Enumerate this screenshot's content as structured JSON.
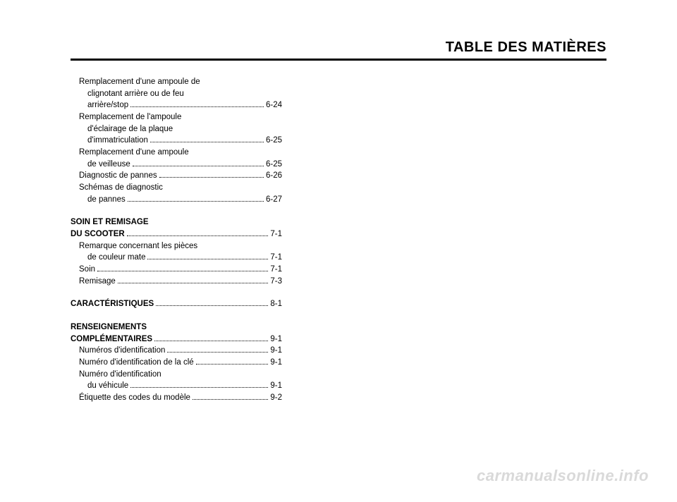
{
  "header": {
    "title": "TABLE DES MATIÈRES"
  },
  "watermark": "carmanualsonline.info",
  "toc": {
    "block1": [
      {
        "indent": 1,
        "text": "Remplacement d'une ampoule de",
        "page": null
      },
      {
        "indent": 2,
        "text": "clignotant arrière ou de feu",
        "page": null
      },
      {
        "indent": 2,
        "text": "arrière/stop",
        "page": "6-24"
      },
      {
        "indent": 1,
        "text": "Remplacement de l'ampoule",
        "page": null
      },
      {
        "indent": 2,
        "text": "d'éclairage de la plaque",
        "page": null
      },
      {
        "indent": 2,
        "text": "d'immatriculation",
        "page": "6-25"
      },
      {
        "indent": 1,
        "text": "Remplacement d'une ampoule",
        "page": null
      },
      {
        "indent": 2,
        "text": "de veilleuse",
        "page": "6-25"
      },
      {
        "indent": 1,
        "text": "Diagnostic de pannes",
        "page": "6-26"
      },
      {
        "indent": 1,
        "text": "Schémas de diagnostic",
        "page": null
      },
      {
        "indent": 2,
        "text": "de pannes",
        "page": "6-27"
      }
    ],
    "block2_head": [
      {
        "indent": 0,
        "text": "SOIN ET REMISAGE",
        "page": null
      }
    ],
    "block2": [
      {
        "indent": 0,
        "text": "DU SCOOTER",
        "page": "7-1",
        "bold": true
      },
      {
        "indent": 1,
        "text": "Remarque concernant les pièces",
        "page": null
      },
      {
        "indent": 2,
        "text": "de couleur mate",
        "page": "7-1"
      },
      {
        "indent": 1,
        "text": "Soin",
        "page": "7-1"
      },
      {
        "indent": 1,
        "text": "Remisage",
        "page": "7-3"
      }
    ],
    "block3": [
      {
        "indent": 0,
        "text": "CARACTÉRISTIQUES",
        "page": "8-1",
        "bold": true
      }
    ],
    "block4_head": [
      {
        "indent": 0,
        "text": "RENSEIGNEMENTS",
        "page": null
      }
    ],
    "block4": [
      {
        "indent": 0,
        "text": "COMPLÉMENTAIRES",
        "page": "9-1",
        "bold": true
      },
      {
        "indent": 1,
        "text": "Numéros d'identification",
        "page": "9-1"
      },
      {
        "indent": 1,
        "text": "Numéro d'identification de la clé",
        "page": "9-1"
      },
      {
        "indent": 1,
        "text": "Numéro d'identification",
        "page": null
      },
      {
        "indent": 2,
        "text": "du véhicule",
        "page": "9-1"
      },
      {
        "indent": 1,
        "text": "Étiquette des codes du modèle",
        "page": "9-2"
      }
    ]
  }
}
